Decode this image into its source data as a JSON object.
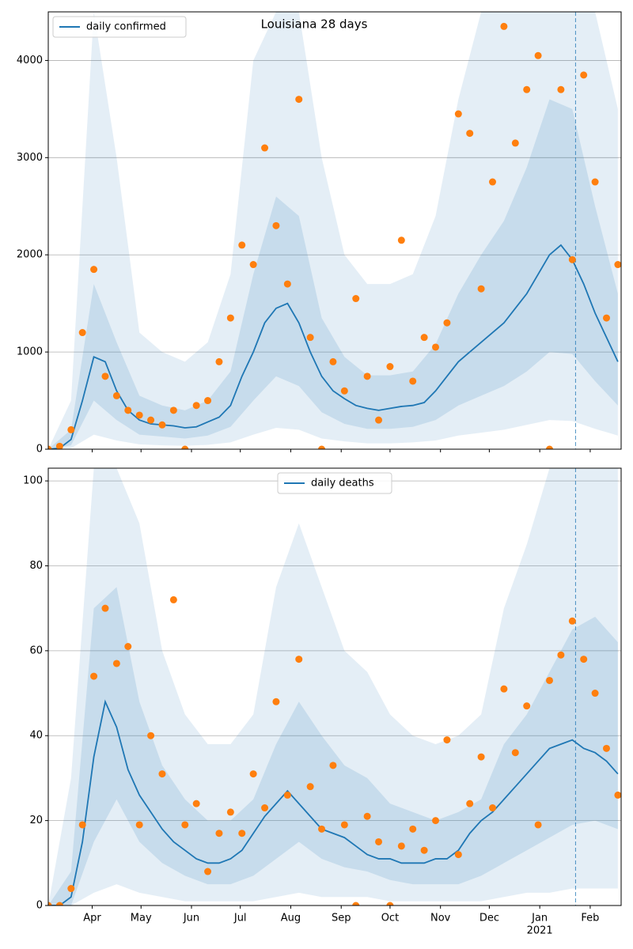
{
  "chart_data": [
    {
      "type": "line",
      "title": "Louisiana 28 days",
      "legend": "upper left",
      "grid": "y",
      "xlim": [
        0,
        352
      ],
      "xticks": [
        27,
        57,
        88,
        118,
        149,
        180,
        210,
        241,
        271,
        302,
        333
      ],
      "ylim": [
        0,
        4500
      ],
      "yticks": [
        0,
        1000,
        2000,
        3000,
        4000
      ],
      "vline_x": 324,
      "x": [
        0,
        7,
        14,
        21,
        28,
        35,
        42,
        49,
        56,
        63,
        70,
        77,
        84,
        91,
        98,
        105,
        112,
        119,
        126,
        133,
        140,
        147,
        154,
        161,
        168,
        175,
        182,
        189,
        196,
        203,
        210,
        217,
        224,
        231,
        238,
        245,
        252,
        259,
        266,
        273,
        280,
        287,
        294,
        301,
        308,
        315,
        322,
        329,
        336,
        343,
        350
      ],
      "series": [
        {
          "name": "daily confirmed",
          "color": "#1f77b4",
          "values": [
            0,
            10,
            100,
            500,
            950,
            900,
            600,
            400,
            300,
            260,
            250,
            240,
            220,
            230,
            280,
            330,
            450,
            750,
            1000,
            1300,
            1450,
            1500,
            1300,
            1000,
            750,
            600,
            520,
            450,
            420,
            400,
            420,
            440,
            450,
            480,
            600,
            750,
            900,
            1000,
            1100,
            1200,
            1300,
            1450,
            1600,
            1800,
            2000,
            2100,
            1950,
            1700,
            1400,
            1150,
            900
          ]
        }
      ],
      "points": {
        "color": "#ff7f0e",
        "values": [
          0,
          30,
          200,
          1200,
          1850,
          750,
          550,
          400,
          350,
          300,
          250,
          400,
          0,
          450,
          500,
          900,
          1350,
          2100,
          1900,
          3100,
          2300,
          1700,
          3600,
          1150,
          0,
          900,
          600,
          1550,
          750,
          300,
          850,
          2150,
          700,
          1150,
          1050,
          1300,
          3450,
          3250,
          1650,
          2750,
          4350,
          3150,
          3700,
          4050,
          0,
          3700,
          1950,
          3850,
          2750,
          1350,
          1900
        ]
      },
      "bands": {
        "color": "#1f77b4",
        "x": [
          0,
          14,
          28,
          42,
          56,
          70,
          84,
          98,
          112,
          126,
          140,
          154,
          168,
          182,
          196,
          210,
          224,
          238,
          252,
          266,
          280,
          294,
          308,
          322,
          336,
          350
        ],
        "outer_lower": [
          0,
          10,
          150,
          90,
          50,
          40,
          35,
          45,
          70,
          150,
          220,
          200,
          110,
          80,
          60,
          60,
          70,
          90,
          140,
          170,
          200,
          250,
          300,
          290,
          210,
          140
        ],
        "outer_upper": [
          0,
          500,
          4500,
          3000,
          1200,
          1000,
          900,
          1100,
          1800,
          4000,
          4500,
          4500,
          3000,
          2000,
          1700,
          1700,
          1800,
          2400,
          3600,
          4500,
          4500,
          4500,
          4500,
          4500,
          4500,
          3500
        ],
        "inner_lower": [
          0,
          40,
          500,
          300,
          150,
          130,
          110,
          140,
          230,
          500,
          750,
          650,
          380,
          260,
          210,
          210,
          230,
          300,
          450,
          550,
          650,
          800,
          1000,
          980,
          700,
          450
        ],
        "inner_upper": [
          0,
          200,
          1700,
          1100,
          550,
          450,
          400,
          500,
          800,
          1800,
          2600,
          2400,
          1350,
          950,
          760,
          760,
          800,
          1080,
          1600,
          2000,
          2350,
          2900,
          3600,
          3500,
          2500,
          1600
        ]
      }
    },
    {
      "type": "line",
      "legend": "upper center",
      "grid": "y",
      "xlim": [
        0,
        352
      ],
      "xticks": [
        {
          "value": 27,
          "label": "Apr"
        },
        {
          "value": 57,
          "label": "May"
        },
        {
          "value": 88,
          "label": "Jun"
        },
        {
          "value": 118,
          "label": "Jul"
        },
        {
          "value": 149,
          "label": "Aug"
        },
        {
          "value": 180,
          "label": "Sep"
        },
        {
          "value": 210,
          "label": "Oct"
        },
        {
          "value": 241,
          "label": "Nov"
        },
        {
          "value": 271,
          "label": "Dec"
        },
        {
          "value": 302,
          "label": "Jan",
          "sublabel": "2021"
        },
        {
          "value": 333,
          "label": "Feb"
        }
      ],
      "ylim": [
        0,
        103
      ],
      "yticks": [
        0,
        20,
        40,
        60,
        80,
        100
      ],
      "vline_x": 324,
      "x": [
        0,
        7,
        14,
        21,
        28,
        35,
        42,
        49,
        56,
        63,
        70,
        77,
        84,
        91,
        98,
        105,
        112,
        119,
        126,
        133,
        140,
        147,
        154,
        161,
        168,
        175,
        182,
        189,
        196,
        203,
        210,
        217,
        224,
        231,
        238,
        245,
        252,
        259,
        266,
        273,
        280,
        287,
        294,
        301,
        308,
        315,
        322,
        329,
        336,
        343,
        350
      ],
      "series": [
        {
          "name": "daily deaths",
          "color": "#1f77b4",
          "values": [
            0,
            0,
            2,
            15,
            35,
            48,
            42,
            32,
            26,
            22,
            18,
            15,
            13,
            11,
            10,
            10,
            11,
            13,
            17,
            21,
            24,
            27,
            24,
            21,
            18,
            17,
            16,
            14,
            12,
            11,
            11,
            10,
            10,
            10,
            11,
            11,
            13,
            17,
            20,
            22,
            25,
            28,
            31,
            34,
            37,
            38,
            39,
            37,
            36,
            34,
            31
          ]
        }
      ],
      "points": {
        "color": "#ff7f0e",
        "values": [
          0,
          0,
          4,
          19,
          54,
          70,
          57,
          61,
          19,
          40,
          31,
          72,
          19,
          24,
          8,
          17,
          22,
          17,
          31,
          23,
          48,
          26,
          58,
          28,
          18,
          33,
          19,
          0,
          21,
          15,
          0,
          14,
          18,
          13,
          20,
          39,
          12,
          24,
          35,
          23,
          51,
          36,
          47,
          19,
          53,
          59,
          67,
          58,
          50,
          37,
          26
        ]
      },
      "bands": {
        "color": "#1f77b4",
        "x": [
          0,
          14,
          28,
          42,
          56,
          70,
          84,
          98,
          112,
          126,
          140,
          154,
          168,
          182,
          196,
          210,
          224,
          238,
          252,
          266,
          280,
          294,
          308,
          322,
          336,
          350
        ],
        "outer_lower": [
          0,
          0,
          3,
          5,
          3,
          2,
          1,
          1,
          1,
          1,
          2,
          3,
          2,
          2,
          2,
          1,
          1,
          1,
          1,
          1,
          2,
          3,
          3,
          4,
          4,
          4
        ],
        "outer_upper": [
          0,
          30,
          103,
          103,
          90,
          60,
          45,
          38,
          38,
          45,
          75,
          90,
          75,
          60,
          55,
          45,
          40,
          38,
          40,
          45,
          70,
          85,
          103,
          103,
          103,
          103
        ],
        "inner_lower": [
          0,
          0,
          15,
          25,
          15,
          10,
          7,
          5,
          5,
          7,
          11,
          15,
          11,
          9,
          8,
          6,
          5,
          5,
          5,
          7,
          10,
          13,
          16,
          19,
          20,
          18
        ],
        "inner_upper": [
          0,
          8,
          70,
          75,
          48,
          33,
          25,
          20,
          20,
          25,
          38,
          48,
          40,
          33,
          30,
          24,
          22,
          20,
          22,
          25,
          38,
          45,
          55,
          65,
          68,
          62
        ]
      }
    }
  ]
}
